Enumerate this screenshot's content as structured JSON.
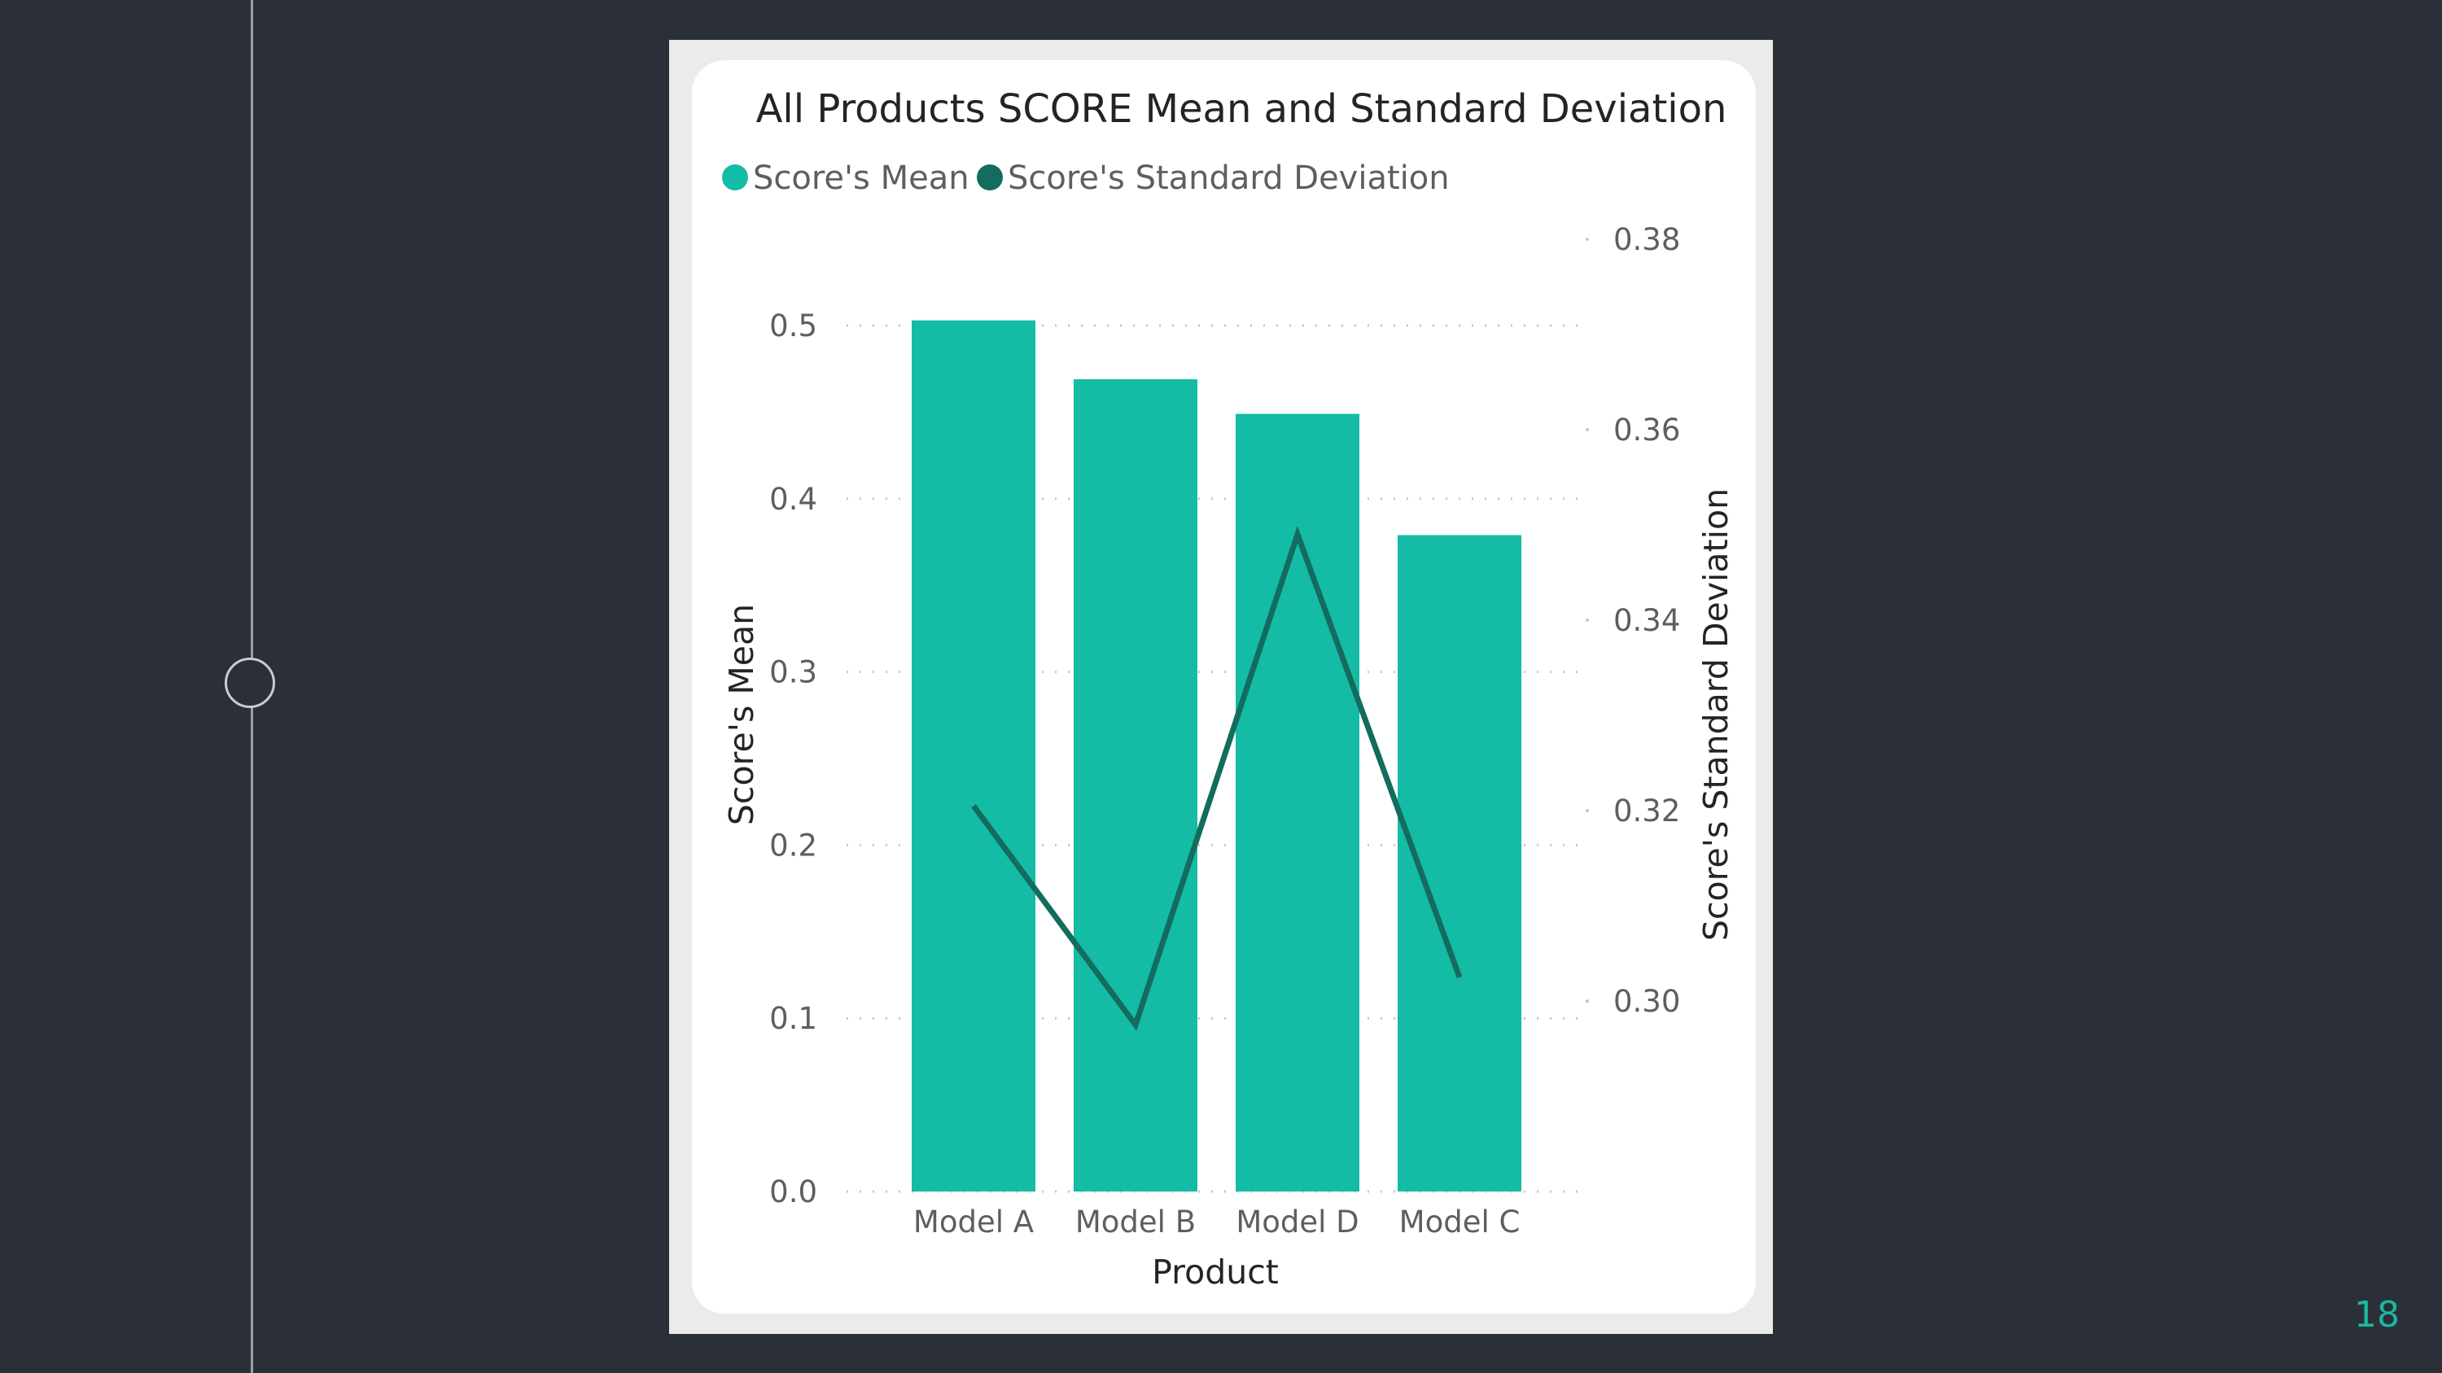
{
  "slide": {
    "page_number": "18"
  },
  "colors": {
    "background": "#2b2f38",
    "bar": "#14bca5",
    "line": "#136c5e",
    "accent": "#19b8a1"
  },
  "chart_data": {
    "type": "bar",
    "title": "All Products SCORE Mean and Standard Deviation",
    "xlabel": "Product",
    "ylabel": "Score's Mean",
    "y2label": "Score's Standard Deviation",
    "categories": [
      "Model A",
      "Model B",
      "Model D",
      "Model C"
    ],
    "series": [
      {
        "name": "Score's Mean",
        "type": "bar",
        "axis": "left",
        "values": [
          0.503,
          0.469,
          0.449,
          0.379
        ]
      },
      {
        "name": "Score's Standard Deviation",
        "type": "line",
        "axis": "right",
        "values": [
          0.3205,
          0.2975,
          0.349,
          0.3025
        ]
      }
    ],
    "ylim": [
      0,
      0.5
    ],
    "yticks": [
      "0.0",
      "0.1",
      "0.2",
      "0.3",
      "0.4",
      "0.5"
    ],
    "y2lim": [
      0.28,
      0.38
    ],
    "y2ticks": [
      "0.30",
      "0.32",
      "0.34",
      "0.36",
      "0.38"
    ],
    "legend_position": "top-left",
    "grid": true
  }
}
